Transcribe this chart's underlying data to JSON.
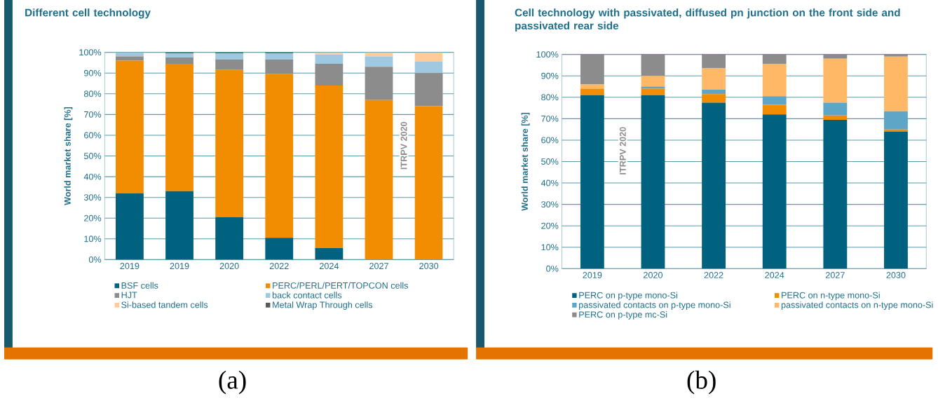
{
  "chart_data": [
    {
      "type": "bar",
      "stacked": true,
      "title": "Different cell technology",
      "ylabel": "World market share [%]",
      "categories": [
        "2019",
        "2019",
        "2020",
        "2022",
        "2024",
        "2027",
        "2030"
      ],
      "series": [
        {
          "name": "BSF cells",
          "color": "#00627f",
          "values": [
            32,
            33,
            20.5,
            10.5,
            5.5,
            0,
            0
          ]
        },
        {
          "name": "PERC/PERL/PERT/TOPCON cells",
          "color": "#f28c00",
          "values": [
            64,
            61.5,
            71,
            79,
            78.5,
            77,
            74
          ]
        },
        {
          "name": "HJT",
          "color": "#8c8c8c",
          "values": [
            2,
            3,
            5,
            7,
            10.5,
            16,
            16
          ]
        },
        {
          "name": "back contact cells",
          "color": "#9ec9e0",
          "values": [
            2,
            2,
            3,
            3,
            4.5,
            5,
            5.5
          ]
        },
        {
          "name": "Si-based tandem cells",
          "color": "#ffcb99",
          "values": [
            0,
            0,
            0,
            0,
            1,
            2,
            4.5
          ]
        },
        {
          "name": "Metal Wrap Through cells",
          "color": "#595959",
          "values": [
            0,
            0.5,
            0.5,
            0.5,
            0,
            0,
            0
          ]
        }
      ],
      "ylim": [
        0,
        100
      ],
      "yticks": [
        {
          "value": 0,
          "label": "0%"
        },
        {
          "value": 10,
          "label": "10%"
        },
        {
          "value": 20,
          "label": "20%"
        },
        {
          "value": 30,
          "label": "30%"
        },
        {
          "value": 40,
          "label": "40%"
        },
        {
          "value": 50,
          "label": "50%"
        },
        {
          "value": 60,
          "label": "60%"
        },
        {
          "value": 70,
          "label": "70%"
        },
        {
          "value": 80,
          "label": "80%"
        },
        {
          "value": 90,
          "label": "90%"
        },
        {
          "value": 100,
          "label": "100%"
        }
      ],
      "grid": "y",
      "legend": "bottom",
      "annotations": [
        "ITRPV 2020",
        "(a)"
      ]
    },
    {
      "type": "bar",
      "stacked": true,
      "title": "Cell technology with passivated, diffused pn junction on the front side and passivated rear side",
      "ylabel": "World market share [%]",
      "categories": [
        "2019",
        "2020",
        "2022",
        "2024",
        "2027",
        "2030"
      ],
      "series": [
        {
          "name": "PERC on p-type mono-Si",
          "color": "#00627f",
          "values": [
            81,
            81,
            77.5,
            72,
            69.5,
            64
          ]
        },
        {
          "name": "PERC on n-type mono-Si",
          "color": "#f28c00",
          "values": [
            3,
            3,
            4,
            4.5,
            2,
            1
          ]
        },
        {
          "name": "passivated contacts on p-type mono-Si",
          "color": "#5ea6c8",
          "values": [
            0,
            1,
            2,
            4,
            6,
            8.5
          ]
        },
        {
          "name": "passivated contacts on n-type mono-Si",
          "color": "#ffb866",
          "values": [
            2,
            5,
            10,
            15,
            20.5,
            25.5
          ]
        },
        {
          "name": "PERC on p-type mc-Si",
          "color": "#8c8c8c",
          "values": [
            14,
            10,
            6.5,
            4.5,
            2,
            1
          ]
        }
      ],
      "ylim": [
        0,
        100
      ],
      "yticks": [
        {
          "value": 0,
          "label": "0%"
        },
        {
          "value": 10,
          "label": "10%"
        },
        {
          "value": 20,
          "label": "20%"
        },
        {
          "value": 30,
          "label": "30%"
        },
        {
          "value": 40,
          "label": "40%"
        },
        {
          "value": 50,
          "label": "50%"
        },
        {
          "value": 60,
          "label": "60%"
        },
        {
          "value": 70,
          "label": "70%"
        },
        {
          "value": 80,
          "label": "80%"
        },
        {
          "value": 90,
          "label": "90%"
        },
        {
          "value": 100,
          "label": "100%"
        }
      ],
      "grid": "y",
      "legend": "bottom",
      "annotations": [
        "ITRPV 2020",
        "(b)"
      ]
    }
  ]
}
